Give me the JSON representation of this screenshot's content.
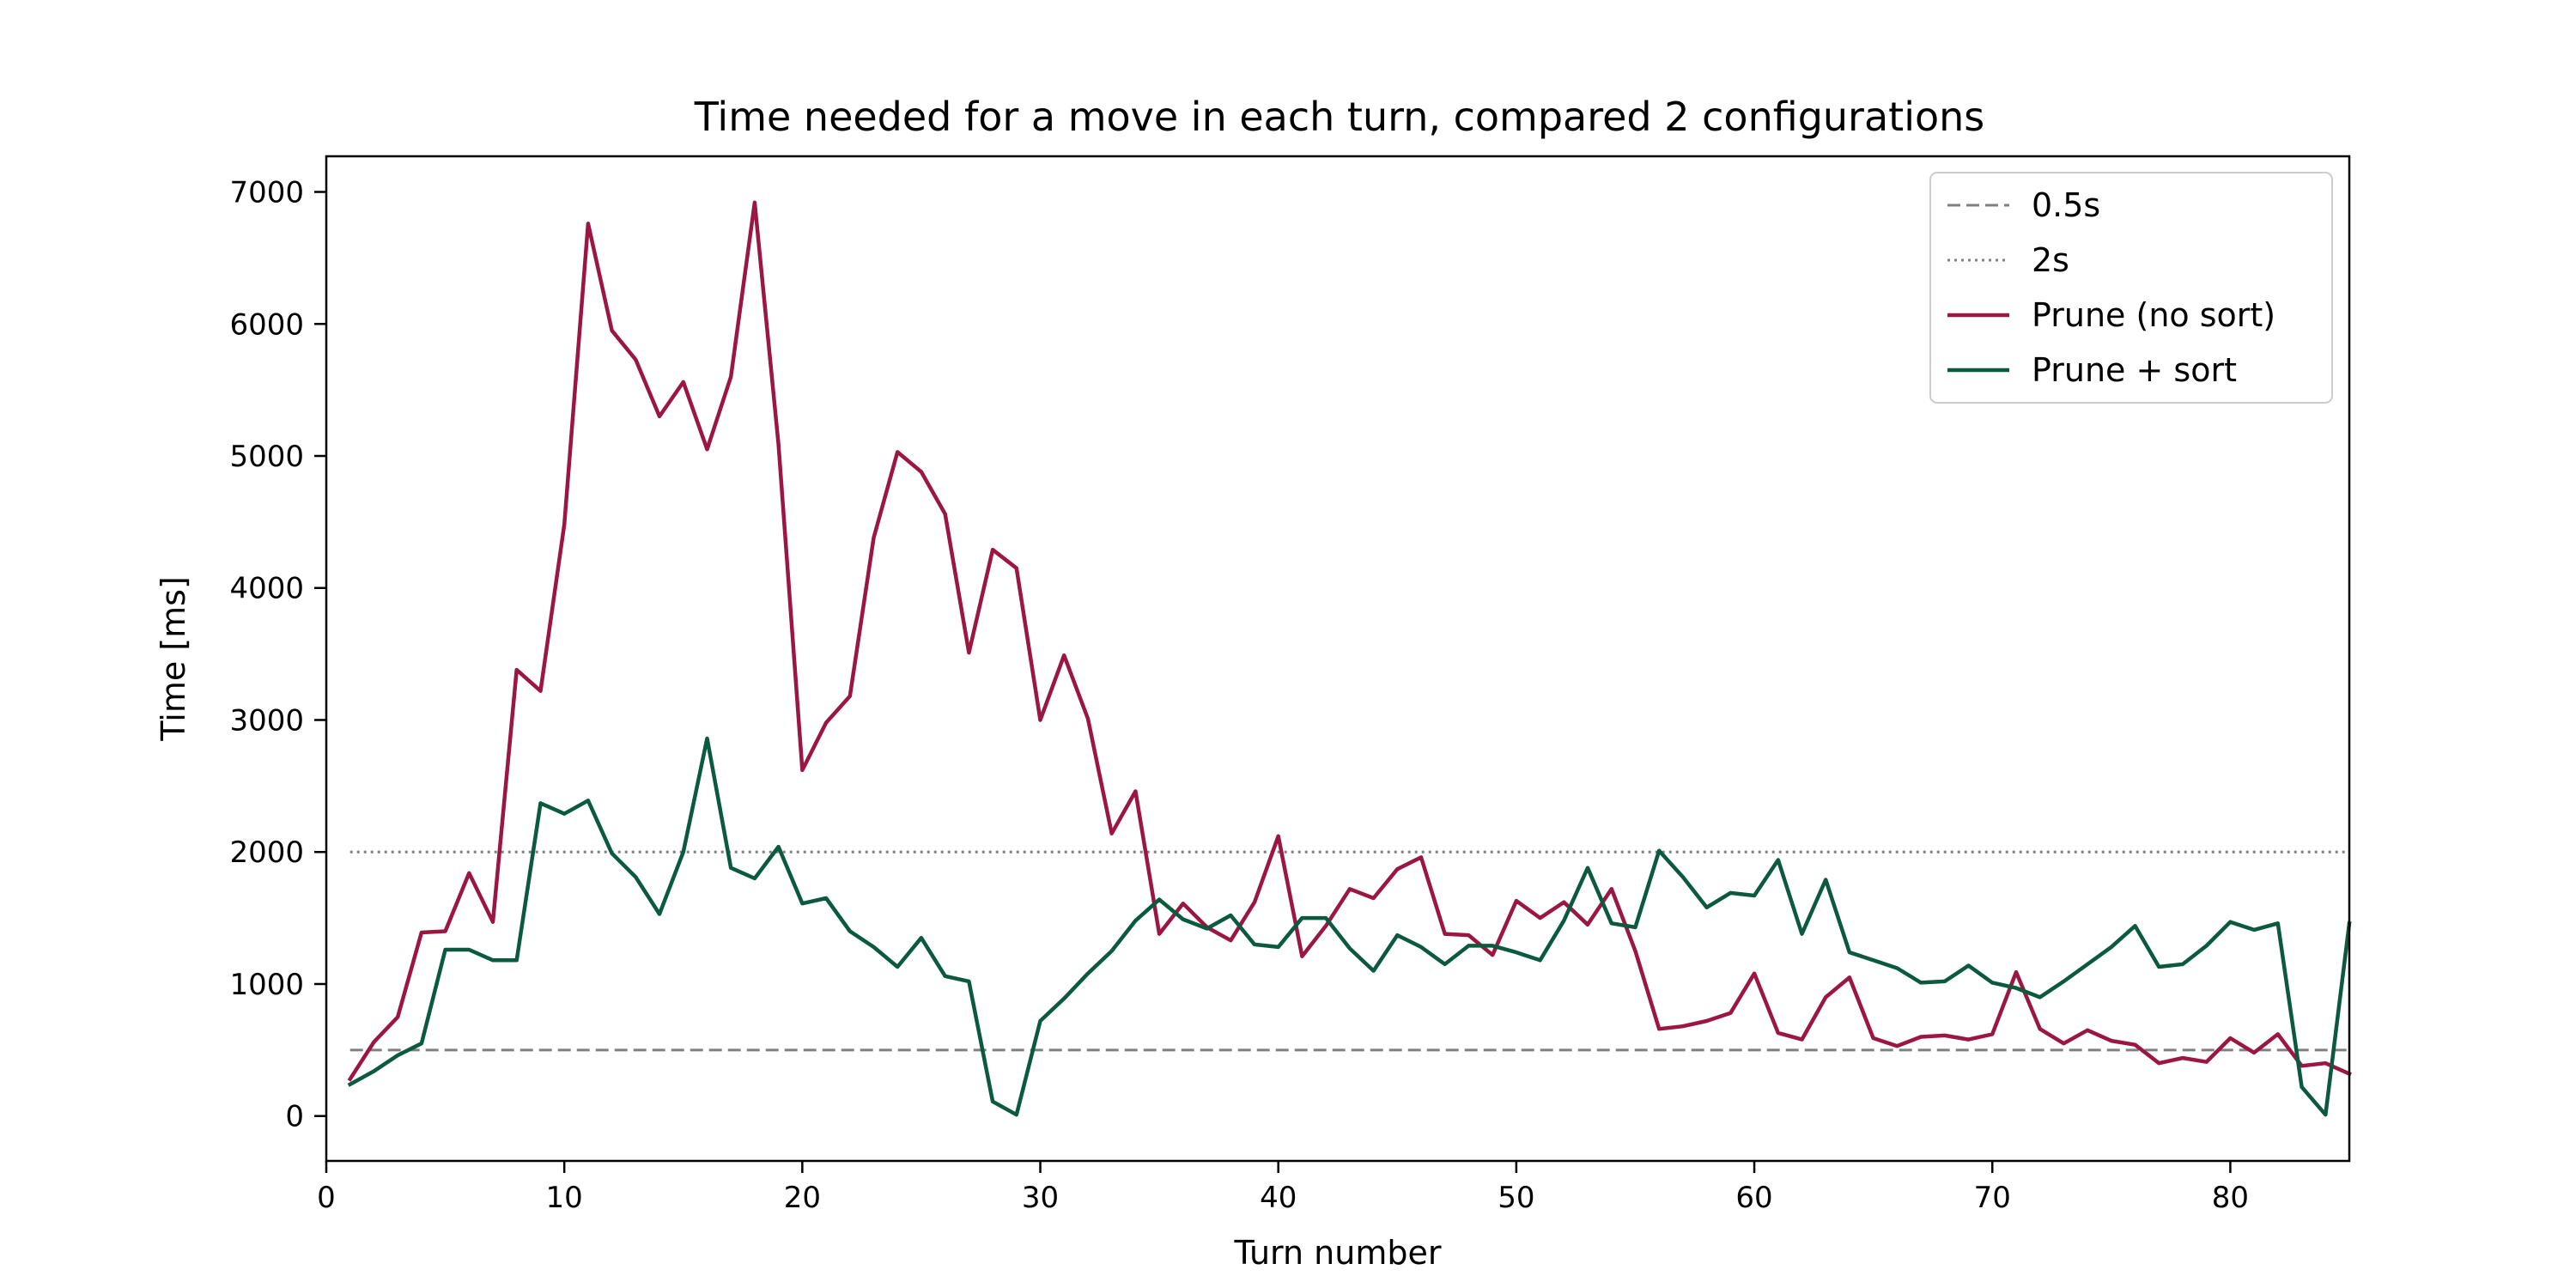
{
  "chart_data": {
    "type": "line",
    "title": "Time needed for a move in each turn, compared 2 configurations",
    "xlabel": "Turn number",
    "ylabel": "Time [ms]",
    "xlim": [
      0,
      85
    ],
    "ylim": [
      -340,
      7270
    ],
    "xticks": [
      0,
      10,
      20,
      30,
      40,
      50,
      60,
      70,
      80
    ],
    "yticks": [
      0,
      1000,
      2000,
      3000,
      4000,
      5000,
      6000,
      7000
    ],
    "grid": false,
    "legend_position": "top-right",
    "reference_lines": [
      {
        "name": "0.5s",
        "y": 500,
        "style": "dashed",
        "color": "#808080",
        "x_range": [
          1,
          85
        ]
      },
      {
        "name": "2s",
        "y": 2000,
        "style": "dotted",
        "color": "#808080",
        "x_range": [
          1,
          85
        ]
      }
    ],
    "series": [
      {
        "name": "Prune (no sort)",
        "color": "#9B1742",
        "x": [
          1,
          2,
          3,
          4,
          5,
          6,
          7,
          8,
          9,
          10,
          11,
          12,
          13,
          14,
          15,
          16,
          17,
          18,
          19,
          20,
          21,
          22,
          23,
          24,
          25,
          26,
          27,
          28,
          29,
          30,
          31,
          32,
          33,
          34,
          35,
          36,
          37,
          38,
          39,
          40,
          41,
          42,
          43,
          44,
          45,
          46,
          47,
          48,
          49,
          50,
          51,
          52,
          53,
          54,
          55,
          56,
          57,
          58,
          59,
          60,
          61,
          62,
          63,
          64,
          65,
          66,
          67,
          68,
          69,
          70,
          71,
          72,
          73,
          74,
          75,
          76,
          77,
          78,
          79,
          80,
          81,
          82,
          83,
          84,
          85
        ],
        "values": [
          280,
          560,
          750,
          1390,
          1400,
          1840,
          1470,
          3380,
          3220,
          4480,
          6760,
          5950,
          5730,
          5300,
          5560,
          5050,
          5600,
          6920,
          5090,
          2620,
          2980,
          3180,
          4380,
          5030,
          4880,
          4560,
          3510,
          4290,
          4150,
          3000,
          3490,
          3010,
          2140,
          2460,
          1380,
          1610,
          1430,
          1330,
          1620,
          2120,
          1210,
          1440,
          1720,
          1650,
          1870,
          1960,
          1380,
          1370,
          1220,
          1630,
          1500,
          1620,
          1450,
          1720,
          1250,
          660,
          680,
          720,
          780,
          1080,
          630,
          580,
          900,
          1050,
          590,
          530,
          600,
          610,
          580,
          620,
          1090,
          660,
          550,
          650,
          570,
          540,
          400,
          440,
          410,
          590,
          480,
          620,
          380,
          400,
          320
        ]
      },
      {
        "name": "Prune + sort",
        "color": "#0B5A3E",
        "x": [
          1,
          2,
          3,
          4,
          5,
          6,
          7,
          8,
          9,
          10,
          11,
          12,
          13,
          14,
          15,
          16,
          17,
          18,
          19,
          20,
          21,
          22,
          23,
          24,
          25,
          26,
          27,
          28,
          29,
          30,
          31,
          32,
          33,
          34,
          35,
          36,
          37,
          38,
          39,
          40,
          41,
          42,
          43,
          44,
          45,
          46,
          47,
          48,
          49,
          50,
          51,
          52,
          53,
          54,
          55,
          56,
          57,
          58,
          59,
          60,
          61,
          62,
          63,
          64,
          65,
          66,
          67,
          68,
          69,
          70,
          71,
          72,
          73,
          74,
          75,
          76,
          77,
          78,
          79,
          80,
          81,
          82,
          83,
          84,
          85
        ],
        "values": [
          240,
          340,
          460,
          550,
          1260,
          1260,
          1180,
          1180,
          2370,
          2290,
          2390,
          1990,
          1810,
          1530,
          2000,
          2860,
          1880,
          1800,
          2040,
          1610,
          1650,
          1400,
          1280,
          1130,
          1350,
          1060,
          1020,
          110,
          10,
          720,
          890,
          1080,
          1250,
          1480,
          1640,
          1490,
          1420,
          1520,
          1300,
          1280,
          1500,
          1500,
          1270,
          1100,
          1370,
          1280,
          1150,
          1290,
          1290,
          1240,
          1180,
          1480,
          1880,
          1460,
          1430,
          2010,
          1810,
          1580,
          1690,
          1670,
          1940,
          1380,
          1790,
          1240,
          1180,
          1120,
          1010,
          1020,
          1140,
          1010,
          970,
          900,
          1020,
          1150,
          1280,
          1440,
          1130,
          1150,
          1290,
          1470,
          1410,
          1460,
          220,
          10,
          1460
        ]
      }
    ]
  }
}
